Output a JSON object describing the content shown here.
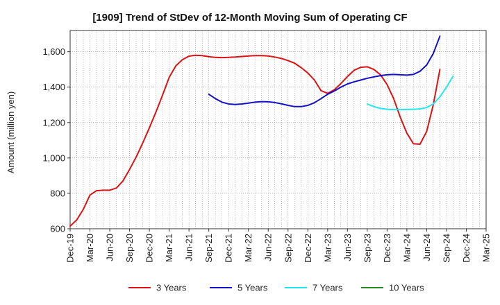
{
  "chart_data": {
    "type": "line",
    "title": "[1909]  Trend of StDev of 12-Month Moving Sum of Operating CF",
    "ylabel": "Amount (million yen)",
    "xlabel": "",
    "ylim": [
      600,
      1720
    ],
    "yticks": [
      600,
      800,
      1000,
      1200,
      1400,
      1600
    ],
    "ytick_labels": [
      "600",
      "800",
      "1,000",
      "1,200",
      "1,400",
      "1,600"
    ],
    "xtick_labels": [
      "Dec-19",
      "Mar-20",
      "Jun-20",
      "Sep-20",
      "Dec-20",
      "Mar-21",
      "Jun-21",
      "Sep-21",
      "Dec-21",
      "Mar-22",
      "Jun-22",
      "Sep-22",
      "Dec-22",
      "Mar-23",
      "Jun-23",
      "Sep-23",
      "Dec-23",
      "Mar-24",
      "Jun-24",
      "Sep-24",
      "Dec-24",
      "Mar-25"
    ],
    "x_start": "Dec-19",
    "x_end": "Mar-25",
    "grid": true,
    "legend_position": "bottom",
    "series": [
      {
        "name": "3 Years",
        "color": "#dd1111",
        "start": "Dec-19",
        "values": [
          615,
          650,
          710,
          790,
          815,
          818,
          818,
          830,
          870,
          935,
          1005,
          1085,
          1170,
          1260,
          1355,
          1455,
          1520,
          1555,
          1575,
          1580,
          1578,
          1572,
          1568,
          1567,
          1568,
          1570,
          1573,
          1576,
          1578,
          1578,
          1576,
          1570,
          1562,
          1550,
          1535,
          1510,
          1480,
          1440,
          1380,
          1365,
          1385,
          1420,
          1460,
          1495,
          1512,
          1515,
          1500,
          1470,
          1415,
          1335,
          1230,
          1140,
          1080,
          1078,
          1150,
          1300,
          1500
        ]
      },
      {
        "name": "5 Years",
        "color": "#1111cc",
        "start": "Sep-21",
        "values": [
          1360,
          1335,
          1315,
          1305,
          1302,
          1305,
          1310,
          1315,
          1318,
          1317,
          1313,
          1306,
          1297,
          1290,
          1290,
          1297,
          1312,
          1335,
          1360,
          1378,
          1400,
          1418,
          1430,
          1440,
          1450,
          1458,
          1465,
          1470,
          1472,
          1470,
          1468,
          1472,
          1490,
          1525,
          1590,
          1688
        ]
      },
      {
        "name": "7 Years",
        "color": "#22e8ee",
        "start": "Sep-23",
        "values": [
          1305,
          1290,
          1280,
          1275,
          1273,
          1273,
          1274,
          1275,
          1277,
          1285,
          1305,
          1345,
          1400,
          1462
        ]
      },
      {
        "name": "10 Years",
        "color": "#228b22",
        "start": "Sep-24",
        "values": []
      }
    ]
  }
}
